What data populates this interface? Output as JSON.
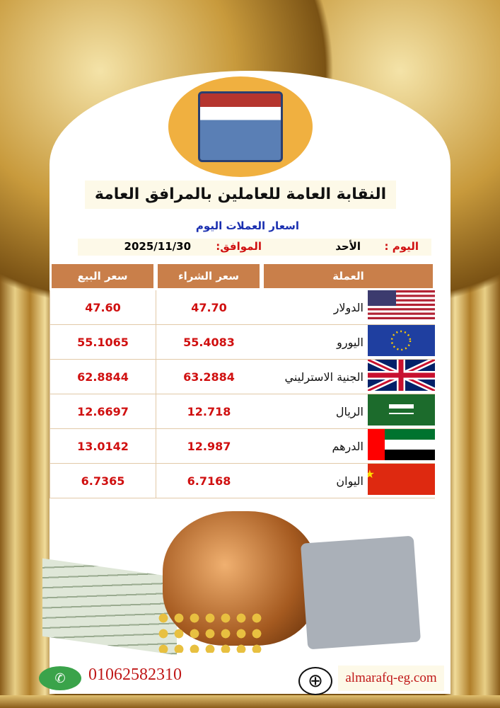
{
  "header": {
    "title": "النقابة العامة للعاملين بالمرافق العامة",
    "subtitle": "اسعار العملات اليوم",
    "day_label": "اليوم :",
    "day_value": "الأحد",
    "date_label": "الموافق:",
    "date_value": "2025/11/30"
  },
  "table": {
    "columns": [
      "العملة",
      "سعر الشراء",
      "سعر البيع"
    ],
    "rows": [
      {
        "flag": "usa-flag",
        "currency": "الدولار",
        "buy": "47.70",
        "sell": "47.60"
      },
      {
        "flag": "eu-flag",
        "currency": "اليورو",
        "buy": "55.4083",
        "sell": "55.1065"
      },
      {
        "flag": "uk-flag",
        "currency": "الجنية الاسترليني",
        "buy": "63.2884",
        "sell": "62.8844"
      },
      {
        "flag": "saudi-flag",
        "currency": "الريال",
        "buy": "12.718",
        "sell": "12.6697"
      },
      {
        "flag": "uae-flag",
        "currency": "الدرهم",
        "buy": "12.987",
        "sell": "13.0142"
      },
      {
        "flag": "china-flag",
        "currency": "اليوان",
        "buy": "6.7168",
        "sell": "6.7365"
      }
    ]
  },
  "footer": {
    "phone": "01062582310",
    "website": "almarafq-eg.com"
  },
  "colors": {
    "header_bg": "#c97f4a",
    "value_red": "#d01010",
    "subtitle_blue": "#1a2fb0",
    "frame_gold": "#c89a3c"
  }
}
